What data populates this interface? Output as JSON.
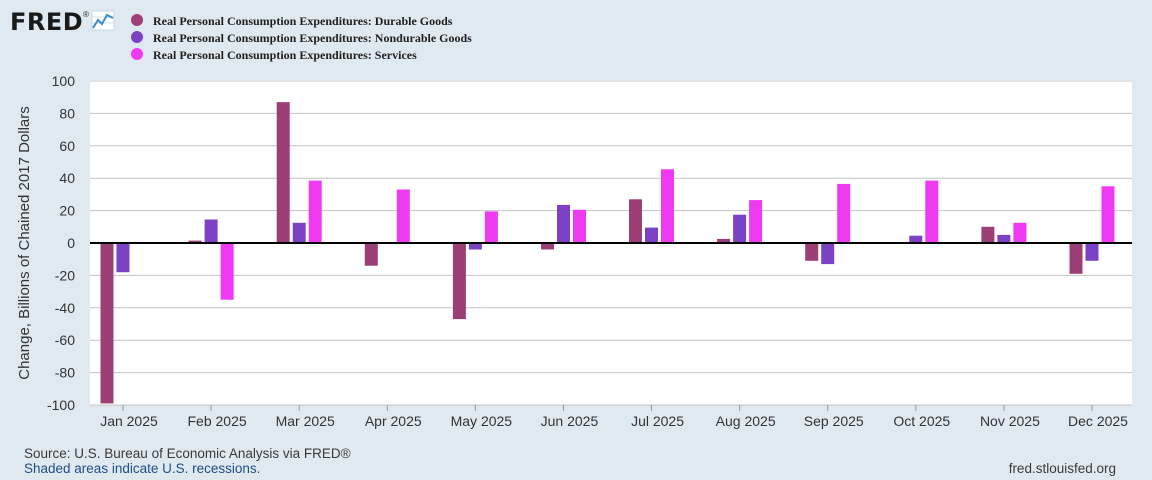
{
  "logo": {
    "text": "FRED",
    "mark": "®"
  },
  "colors": {
    "page_background": "#e1e9f0",
    "plot_background": "#ffffff",
    "gridline": "#c4c4c4",
    "zero_line": "#000000",
    "link_text": "#1d4e89",
    "footer_text": "#3a3a3a"
  },
  "chart_data": {
    "type": "bar",
    "categories": [
      "Jan 2025",
      "Feb 2025",
      "Mar 2025",
      "Apr 2025",
      "May 2025",
      "Jun 2025",
      "Jul 2025",
      "Aug 2025",
      "Sep 2025",
      "Oct 2025",
      "Nov 2025",
      "Dec 2025"
    ],
    "series": [
      {
        "name": "Real Personal Consumption Expenditures: Durable Goods",
        "color": "#9c3f77",
        "values": [
          -99,
          1.5,
          87,
          -14,
          -47,
          -4,
          27,
          2.5,
          -11,
          0,
          10,
          -19
        ]
      },
      {
        "name": "Real Personal Consumption Expenditures: Nondurable Goods",
        "color": "#7b42c5",
        "values": [
          -18,
          14.5,
          12.5,
          0,
          -4,
          23.5,
          9.5,
          17.5,
          -13,
          4.5,
          5,
          -11
        ]
      },
      {
        "name": "Real Personal Consumption Expenditures: Services",
        "color": "#ee3af1",
        "values": [
          0,
          -35,
          38.5,
          33,
          19.5,
          20.5,
          45.5,
          26.5,
          36.5,
          38.5,
          12.5,
          35
        ]
      }
    ],
    "title": "",
    "xlabel": "",
    "ylabel": "Change, Billions of Chained 2017 Dollars",
    "ylim": [
      -100,
      100
    ],
    "yticks": [
      100,
      80,
      60,
      40,
      20,
      0,
      -20,
      -40,
      -60,
      -80,
      -100
    ],
    "grid": true,
    "legend_position": "top-left"
  },
  "footer": {
    "source": "Source: U.S. Bureau of Economic Analysis via FRED®",
    "recession_note": "Shaded areas indicate U.S. recessions.",
    "site": "fred.stlouisfed.org"
  }
}
